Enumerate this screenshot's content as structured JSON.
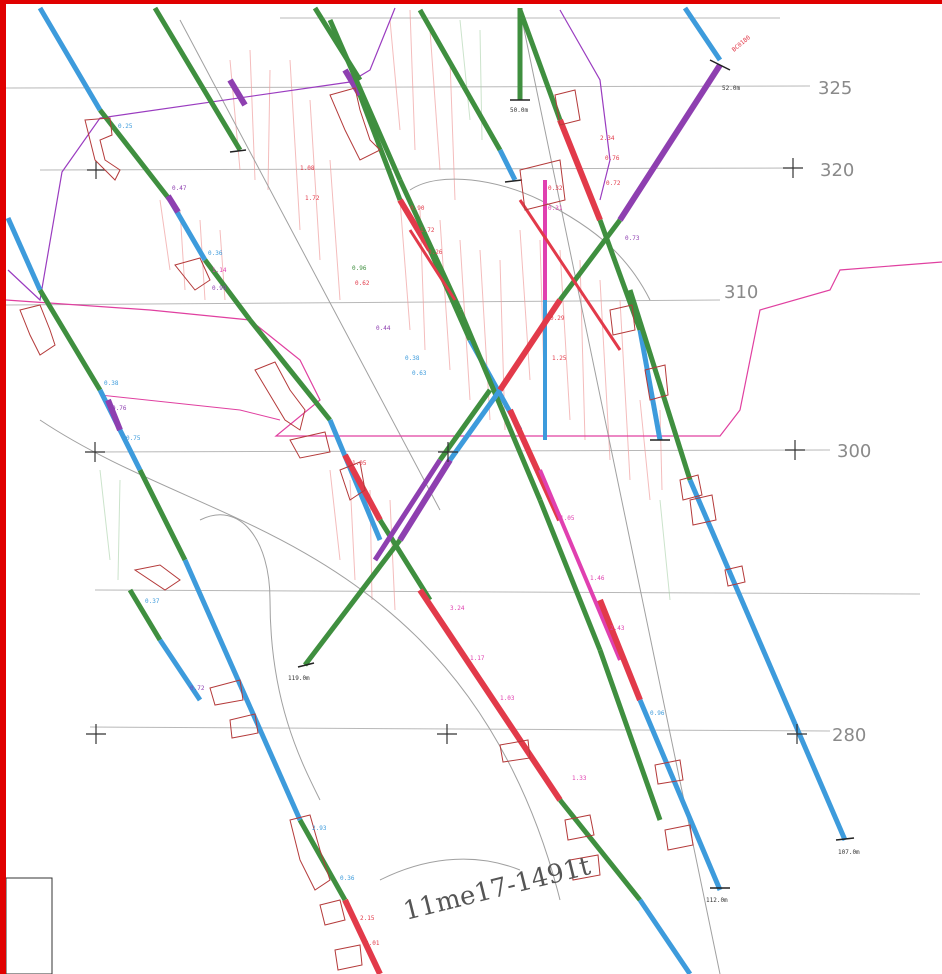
{
  "section": {
    "handwritten_title": "11me17-1491t",
    "elevation_labels": [
      "325",
      "320",
      "310",
      "300",
      "280"
    ],
    "hole_end_depths": [
      "52.0m",
      "50.0m",
      "119.0m",
      "107.0m",
      "112.0m"
    ],
    "hole_id": "BC0180"
  },
  "colors": {
    "frame": "#e00000",
    "blue_trace": "#3d9bdc",
    "green_trace": "#3f8f3f",
    "red_trace": "#e23a4a",
    "magenta_trace": "#e040b0",
    "purple_trace": "#8e3fb0",
    "pencil_red": "#e88080",
    "outline": "#b43a3a",
    "gridline": "#999999"
  },
  "icons": [
    "cross-hair-icon"
  ]
}
